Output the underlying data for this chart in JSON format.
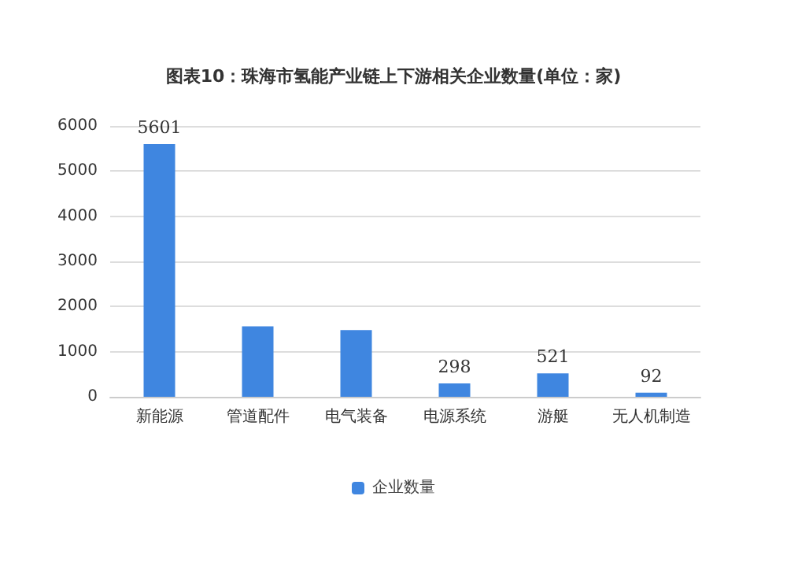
{
  "chart_data": {
    "type": "bar",
    "title": "图表10：珠海市氢能产业链上下游相关企业数量(单位：家)",
    "categories": [
      "新能源",
      "管道配件",
      "电气装备",
      "电源系统",
      "游艇",
      "无人机制造"
    ],
    "series": [
      {
        "name": "企业数量",
        "color": "#3f86e0",
        "values": [
          5601,
          1560,
          1480,
          298,
          521,
          92
        ],
        "value_labels": [
          "5601",
          null,
          null,
          "298",
          "521",
          "92"
        ]
      }
    ],
    "ylim": [
      0,
      6000
    ],
    "yticks": [
      0,
      1000,
      2000,
      3000,
      4000,
      5000,
      6000
    ],
    "grid": "y",
    "legend": "bottom"
  }
}
